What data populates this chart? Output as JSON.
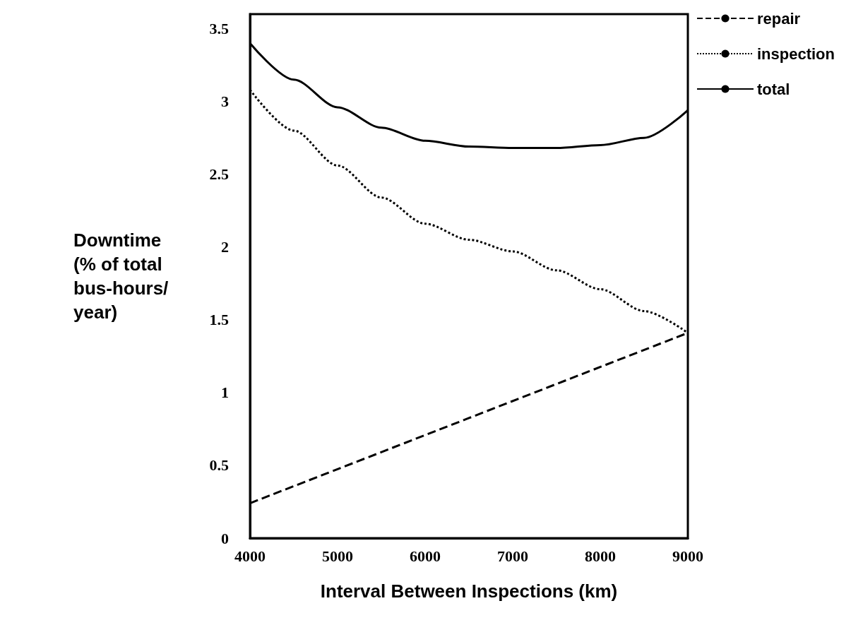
{
  "chart_data": {
    "type": "line",
    "xlabel": "Interval Between Inspections (km)",
    "ylabel": "Downtime\n(% of total\nbus-hours/\nyear)",
    "xlim": [
      4000,
      9000
    ],
    "xticks": [
      4000,
      5000,
      6000,
      7000,
      8000,
      9000
    ],
    "ylim": [
      0,
      3.6
    ],
    "yticks": [
      0,
      0.5,
      1,
      1.5,
      2,
      2.5,
      3,
      3.5
    ],
    "grid": false,
    "legend": "top right",
    "marker": "none",
    "series": [
      {
        "name": "repair",
        "color": "#000000",
        "line_style": "dashed",
        "x": [
          4000,
          9000
        ],
        "values": [
          0.24,
          1.41
        ]
      },
      {
        "name": "inspection",
        "color": "#000000",
        "line_style": "dotted",
        "x": [
          4000,
          4500,
          5000,
          5500,
          6000,
          6500,
          7000,
          7500,
          8000,
          8500,
          9000
        ],
        "values": [
          3.08,
          2.8,
          2.56,
          2.34,
          2.16,
          2.05,
          1.97,
          1.84,
          1.71,
          1.56,
          1.41
        ]
      },
      {
        "name": "total",
        "color": "#000000",
        "line_style": "solid",
        "x": [
          4000,
          4500,
          5000,
          5500,
          6000,
          6500,
          7000,
          7500,
          8000,
          8500,
          9000
        ],
        "values": [
          3.4,
          3.15,
          2.96,
          2.82,
          2.73,
          2.69,
          2.68,
          2.68,
          2.7,
          2.75,
          2.94
        ]
      }
    ]
  }
}
